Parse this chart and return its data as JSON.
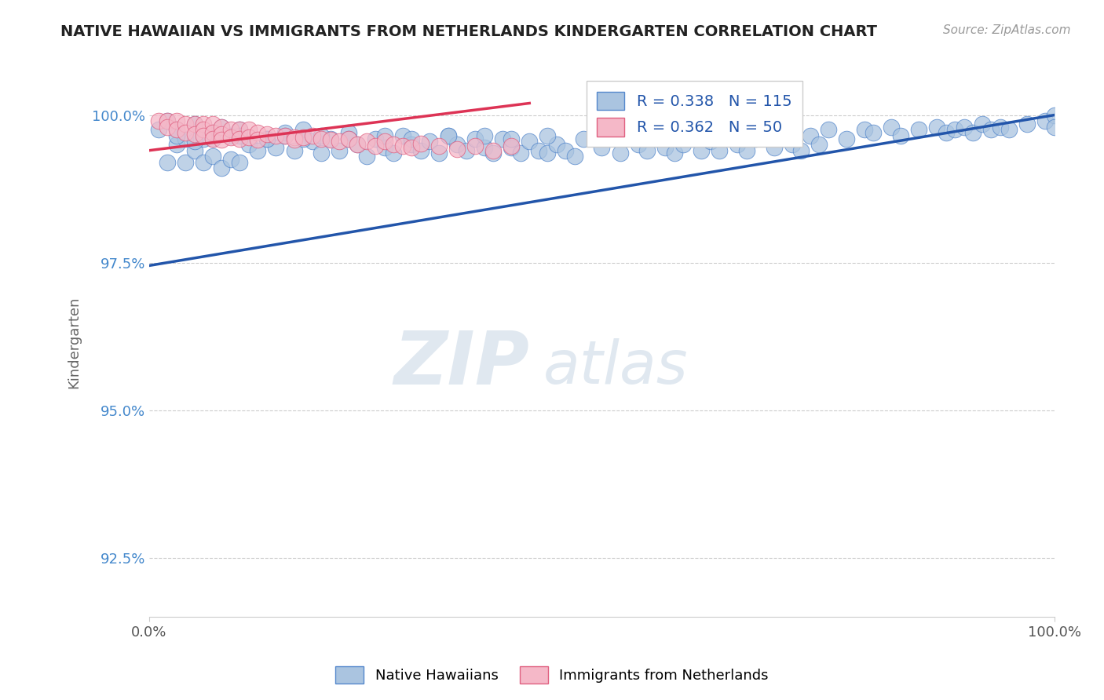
{
  "title": "NATIVE HAWAIIAN VS IMMIGRANTS FROM NETHERLANDS KINDERGARTEN CORRELATION CHART",
  "source": "Source: ZipAtlas.com",
  "xlabel": "",
  "ylabel": "Kindergarten",
  "xmin": 0.0,
  "xmax": 1.0,
  "ymin": 0.915,
  "ymax": 1.008,
  "yticks": [
    0.925,
    0.95,
    0.975,
    1.0
  ],
  "ytick_labels": [
    "92.5%",
    "95.0%",
    "97.5%",
    "100.0%"
  ],
  "xtick_labels": [
    "0.0%",
    "100.0%"
  ],
  "xticks": [
    0.0,
    1.0
  ],
  "blue_R": 0.338,
  "blue_N": 115,
  "pink_R": 0.362,
  "pink_N": 50,
  "blue_color": "#aac4e0",
  "blue_edge_color": "#5588cc",
  "blue_line_color": "#2255aa",
  "pink_color": "#f5b8c8",
  "pink_edge_color": "#e06080",
  "pink_line_color": "#dd3355",
  "background_color": "#ffffff",
  "grid_color": "#cccccc",
  "legend_label_blue": "Native Hawaiians",
  "legend_label_pink": "Immigrants from Netherlands",
  "title_color": "#222222",
  "axis_label_color": "#666666",
  "tick_label_color_y": "#4488cc",
  "tick_label_color_x": "#555555",
  "watermark_zip": "ZIP",
  "watermark_atlas": "atlas",
  "watermark_color": "#e0e8f0",
  "blue_scatter_x": [
    0.01,
    0.02,
    0.02,
    0.03,
    0.03,
    0.04,
    0.04,
    0.05,
    0.05,
    0.06,
    0.06,
    0.07,
    0.07,
    0.08,
    0.08,
    0.09,
    0.09,
    0.1,
    0.1,
    0.11,
    0.12,
    0.13,
    0.14,
    0.15,
    0.16,
    0.17,
    0.18,
    0.19,
    0.2,
    0.21,
    0.22,
    0.23,
    0.24,
    0.25,
    0.26,
    0.27,
    0.28,
    0.29,
    0.3,
    0.31,
    0.32,
    0.33,
    0.34,
    0.35,
    0.36,
    0.37,
    0.38,
    0.39,
    0.4,
    0.41,
    0.42,
    0.43,
    0.44,
    0.45,
    0.46,
    0.47,
    0.48,
    0.5,
    0.52,
    0.54,
    0.55,
    0.56,
    0.57,
    0.58,
    0.59,
    0.6,
    0.61,
    0.62,
    0.63,
    0.64,
    0.65,
    0.66,
    0.67,
    0.68,
    0.69,
    0.7,
    0.71,
    0.72,
    0.73,
    0.74,
    0.75,
    0.77,
    0.79,
    0.8,
    0.82,
    0.83,
    0.85,
    0.87,
    0.88,
    0.89,
    0.9,
    0.91,
    0.92,
    0.93,
    0.94,
    0.95,
    0.97,
    0.99,
    1.0,
    1.0,
    0.03,
    0.05,
    0.07,
    0.1,
    0.13,
    0.15,
    0.17,
    0.19,
    0.22,
    0.26,
    0.29,
    0.33,
    0.37,
    0.4,
    0.44,
    0.5
  ],
  "blue_scatter_y": [
    0.9975,
    0.992,
    0.999,
    0.995,
    0.9975,
    0.992,
    0.996,
    0.994,
    0.9985,
    0.992,
    0.996,
    0.993,
    0.997,
    0.991,
    0.998,
    0.9925,
    0.9965,
    0.992,
    0.9975,
    0.995,
    0.994,
    0.996,
    0.9945,
    0.997,
    0.994,
    0.9975,
    0.9955,
    0.9935,
    0.996,
    0.994,
    0.997,
    0.995,
    0.993,
    0.996,
    0.9945,
    0.9935,
    0.9965,
    0.995,
    0.994,
    0.9955,
    0.9935,
    0.9965,
    0.995,
    0.994,
    0.996,
    0.9945,
    0.9935,
    0.996,
    0.9945,
    0.9935,
    0.9955,
    0.994,
    0.9935,
    0.995,
    0.994,
    0.993,
    0.996,
    0.9945,
    0.9935,
    0.995,
    0.994,
    0.996,
    0.9945,
    0.9935,
    0.995,
    0.996,
    0.994,
    0.9955,
    0.994,
    0.9965,
    0.995,
    0.994,
    0.996,
    0.9975,
    0.9945,
    0.996,
    0.995,
    0.994,
    0.9965,
    0.995,
    0.9975,
    0.996,
    0.9975,
    0.997,
    0.998,
    0.9965,
    0.9975,
    0.998,
    0.997,
    0.9975,
    0.998,
    0.997,
    0.9985,
    0.9975,
    0.998,
    0.9975,
    0.9985,
    0.999,
    1.0,
    0.998,
    0.9965,
    0.9955,
    0.996,
    0.9965,
    0.996,
    0.9965,
    0.996,
    0.9965,
    0.996,
    0.9965,
    0.996,
    0.9965,
    0.9965,
    0.996,
    0.9965,
    0.9965
  ],
  "pink_scatter_x": [
    0.01,
    0.02,
    0.02,
    0.03,
    0.03,
    0.04,
    0.04,
    0.05,
    0.05,
    0.06,
    0.06,
    0.06,
    0.07,
    0.07,
    0.07,
    0.08,
    0.08,
    0.08,
    0.09,
    0.09,
    0.1,
    0.1,
    0.11,
    0.11,
    0.12,
    0.12,
    0.13,
    0.14,
    0.15,
    0.16,
    0.16,
    0.17,
    0.18,
    0.19,
    0.2,
    0.21,
    0.22,
    0.23,
    0.24,
    0.25,
    0.26,
    0.27,
    0.28,
    0.29,
    0.3,
    0.32,
    0.34,
    0.36,
    0.38,
    0.4
  ],
  "pink_scatter_y": [
    0.999,
    0.999,
    0.998,
    0.999,
    0.9975,
    0.9985,
    0.997,
    0.9985,
    0.9968,
    0.9985,
    0.9975,
    0.9965,
    0.9985,
    0.997,
    0.996,
    0.998,
    0.9968,
    0.9958,
    0.9975,
    0.9962,
    0.9975,
    0.996,
    0.9975,
    0.9962,
    0.997,
    0.9958,
    0.9968,
    0.9965,
    0.9965,
    0.9962,
    0.9958,
    0.9962,
    0.9965,
    0.996,
    0.9958,
    0.9955,
    0.996,
    0.995,
    0.9955,
    0.9948,
    0.9955,
    0.995,
    0.9948,
    0.9945,
    0.9952,
    0.9948,
    0.9942,
    0.9948,
    0.994,
    0.9948
  ]
}
